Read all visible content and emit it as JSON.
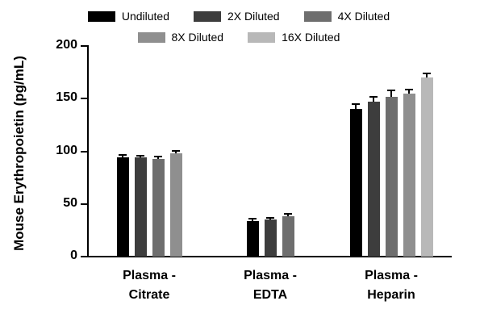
{
  "figure": {
    "background": "#ffffff",
    "axis_color": "#000000",
    "error_bar_color": "#000000"
  },
  "chart_data": {
    "type": "bar",
    "title": "",
    "xlabel": "",
    "ylabel": "Mouse Erythropoietin (pg/mL)",
    "ylim": [
      0,
      200
    ],
    "yticks": [
      0,
      50,
      100,
      150,
      200
    ],
    "grid": false,
    "legend_position": "top",
    "categories": [
      "Plasma -\nCitrate",
      "Plasma -\nEDTA",
      "Plasma -\nHeparin"
    ],
    "series": [
      {
        "name": "Undiluted",
        "color": "#000000",
        "values": [
          94,
          34,
          140
        ],
        "errors": [
          2,
          1,
          4
        ]
      },
      {
        "name": "2X Diluted",
        "color": "#3d3d3d",
        "values": [
          94,
          35,
          147
        ],
        "errors": [
          1,
          1,
          4
        ]
      },
      {
        "name": "4X Diluted",
        "color": "#6e6e6e",
        "values": [
          93,
          38,
          152
        ],
        "errors": [
          1,
          2,
          5
        ]
      },
      {
        "name": "8X Diluted",
        "color": "#8f8f8f",
        "values": [
          98,
          null,
          155
        ],
        "errors": [
          2,
          null,
          3
        ]
      },
      {
        "name": "16X Diluted",
        "color": "#b8b8b8",
        "values": [
          null,
          null,
          170
        ],
        "errors": [
          null,
          null,
          3
        ]
      }
    ]
  }
}
